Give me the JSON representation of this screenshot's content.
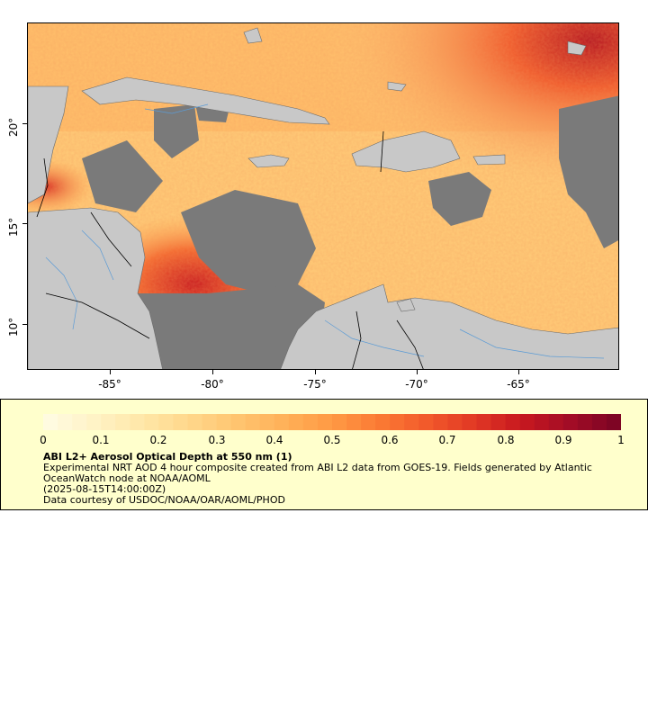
{
  "map": {
    "y_axis_labels": [
      "20°",
      "15°",
      "10°"
    ],
    "x_axis_labels": [
      "-85°",
      "-80°",
      "-75°",
      "-70°",
      "-65°"
    ],
    "land_color": "#c8c8c8",
    "no_data_color": "#7a7a7a",
    "coastline_color": "#6a6a6a",
    "river_color": "#5b9bd5",
    "border_color": "#000000"
  },
  "legend": {
    "ticks": [
      "0",
      "0.1",
      "0.2",
      "0.3",
      "0.4",
      "0.5",
      "0.6",
      "0.7",
      "0.8",
      "0.9",
      "1"
    ],
    "title": "ABI L2+ Aerosol Optical Depth at 550 nm (1)",
    "line1": "Experimental NRT AOD 4 hour composite created from ABI L2 data from GOES-19. Fields generated by Atlantic",
    "line2": "OceanWatch node at NOAA/AOML",
    "line3": "(2025-08-15T14:00:00Z)",
    "line4": "Data courtesy of USDOC/NOAA/OAR/AOML/PHOD",
    "colorscale": [
      "#fffbe0",
      "#fff2c4",
      "#ffe6a6",
      "#ffd68a",
      "#ffc46f",
      "#ffb058",
      "#ff9a44",
      "#fb7a34",
      "#f25a2b",
      "#e23a25",
      "#c8191f",
      "#a50d26",
      "#7e0524"
    ]
  }
}
